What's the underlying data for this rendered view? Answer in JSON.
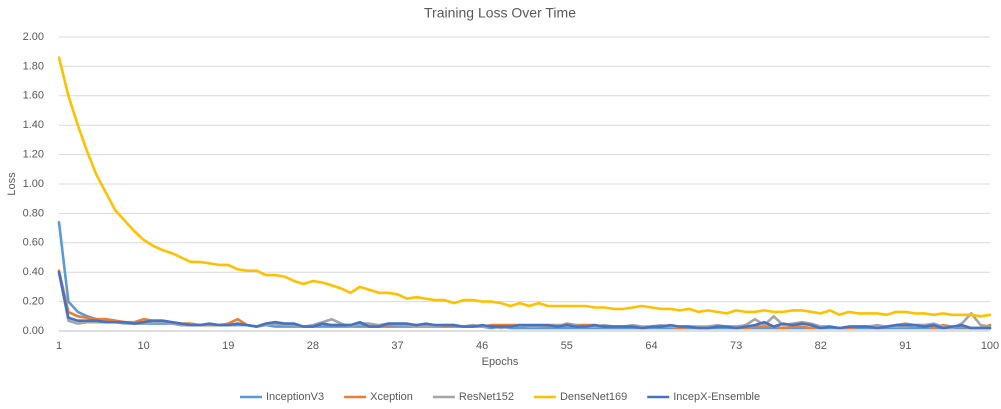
{
  "chart_data": {
    "type": "line",
    "title": "Training Loss Over Time",
    "x_label": "Epochs",
    "y_label": "Loss",
    "categories": [
      1,
      null,
      null,
      null,
      null,
      null,
      null,
      null,
      null,
      10,
      null,
      null,
      null,
      null,
      null,
      null,
      null,
      null,
      19,
      null,
      null,
      null,
      null,
      null,
      null,
      null,
      null,
      28,
      null,
      null,
      null,
      null,
      null,
      null,
      null,
      null,
      37,
      null,
      null,
      null,
      null,
      null,
      null,
      null,
      null,
      46,
      null,
      null,
      null,
      null,
      null,
      null,
      null,
      null,
      55,
      null,
      null,
      null,
      null,
      null,
      null,
      null,
      null,
      64,
      null,
      null,
      null,
      null,
      null,
      null,
      null,
      null,
      73,
      null,
      null,
      null,
      null,
      null,
      null,
      null,
      null,
      82,
      null,
      null,
      null,
      null,
      null,
      null,
      null,
      null,
      91,
      null,
      null,
      null,
      null,
      null,
      null,
      null,
      null,
      100
    ],
    "ylim": [
      0,
      2
    ],
    "yticks": [
      {
        "value": 0,
        "label": "0.00"
      },
      {
        "value": 0.2,
        "label": "0.20"
      },
      {
        "value": 0.4,
        "label": "0.40"
      },
      {
        "value": 0.6,
        "label": "0.60"
      },
      {
        "value": 0.8,
        "label": "0.80"
      },
      {
        "value": 1,
        "label": "1.00"
      },
      {
        "value": 1.2,
        "label": "1.20"
      },
      {
        "value": 1.4,
        "label": "1.40"
      },
      {
        "value": 1.6,
        "label": "1.60"
      },
      {
        "value": 1.8,
        "label": "1.80"
      },
      {
        "value": 2,
        "label": "2.00"
      }
    ],
    "grid": true,
    "legend": "bottom",
    "series": [
      {
        "name": "InceptionV3",
        "color": "#5b9bd5",
        "values": [
          0.74,
          0.2,
          0.13,
          0.1,
          0.08,
          0.07,
          0.06,
          0.06,
          0.05,
          0.05,
          0.05,
          0.05,
          0.05,
          0.04,
          0.04,
          0.04,
          0.04,
          0.04,
          0.04,
          0.04,
          0.04,
          0.03,
          0.04,
          0.03,
          0.03,
          0.03,
          0.03,
          0.03,
          0.03,
          0.03,
          0.03,
          0.03,
          0.03,
          0.03,
          0.03,
          0.03,
          0.03,
          0.03,
          0.03,
          0.03,
          0.03,
          0.03,
          0.03,
          0.03,
          0.03,
          0.03,
          0.02,
          0.03,
          0.02,
          0.02,
          0.02,
          0.02,
          0.02,
          0.02,
          0.02,
          0.02,
          0.02,
          0.02,
          0.02,
          0.02,
          0.02,
          0.02,
          0.02,
          0.02,
          0.02,
          0.02,
          0.02,
          0.02,
          0.02,
          0.02,
          0.02,
          0.02,
          0.02,
          0.02,
          0.02,
          0.02,
          0.02,
          0.02,
          0.02,
          0.02,
          0.02,
          0.02,
          0.02,
          0.02,
          0.02,
          0.02,
          0.02,
          0.02,
          0.02,
          0.02,
          0.02,
          0.02,
          0.02,
          0.02,
          0.02,
          0.02,
          0.02,
          0.02,
          0.02,
          0.02
        ]
      },
      {
        "name": "Xception",
        "color": "#ed7d31",
        "values": [
          0.41,
          0.13,
          0.1,
          0.09,
          0.08,
          0.08,
          0.07,
          0.06,
          0.06,
          0.08,
          0.07,
          0.07,
          0.06,
          0.05,
          0.05,
          0.04,
          0.04,
          0.04,
          0.05,
          0.08,
          0.04,
          0.03,
          0.05,
          0.06,
          0.05,
          0.04,
          0.03,
          0.03,
          0.05,
          0.04,
          0.04,
          0.04,
          0.05,
          0.03,
          0.03,
          0.04,
          0.04,
          0.04,
          0.04,
          0.04,
          0.04,
          0.03,
          0.04,
          0.03,
          0.04,
          0.03,
          0.04,
          0.04,
          0.04,
          0.04,
          0.03,
          0.04,
          0.03,
          0.03,
          0.05,
          0.04,
          0.04,
          0.04,
          0.03,
          0.03,
          0.03,
          0.03,
          0.02,
          0.03,
          0.03,
          0.03,
          0.02,
          0.03,
          0.02,
          0.03,
          0.03,
          0.03,
          0.03,
          0.02,
          0.03,
          0.03,
          0.03,
          0.02,
          0.03,
          0.03,
          0.02,
          0.03,
          0.03,
          0.02,
          0.02,
          0.03,
          0.03,
          0.02,
          0.03,
          0.04,
          0.05,
          0.04,
          0.04,
          0.02,
          0.04,
          0.03,
          0.03,
          0.02,
          0.02,
          0.04
        ]
      },
      {
        "name": "ResNet152",
        "color": "#a5a5a5",
        "values": [
          0.4,
          0.07,
          0.05,
          0.06,
          0.06,
          0.06,
          0.06,
          0.05,
          0.05,
          0.05,
          0.06,
          0.06,
          0.05,
          0.04,
          0.04,
          0.04,
          0.05,
          0.04,
          0.04,
          0.05,
          0.04,
          0.03,
          0.04,
          0.05,
          0.04,
          0.04,
          0.03,
          0.04,
          0.06,
          0.08,
          0.05,
          0.03,
          0.05,
          0.05,
          0.04,
          0.05,
          0.04,
          0.04,
          0.03,
          0.03,
          0.03,
          0.04,
          0.04,
          0.03,
          0.04,
          0.03,
          0.03,
          0.02,
          0.03,
          0.04,
          0.03,
          0.03,
          0.04,
          0.04,
          0.04,
          0.04,
          0.03,
          0.03,
          0.04,
          0.03,
          0.03,
          0.04,
          0.03,
          0.03,
          0.04,
          0.03,
          0.03,
          0.03,
          0.03,
          0.03,
          0.04,
          0.03,
          0.03,
          0.04,
          0.08,
          0.04,
          0.1,
          0.04,
          0.05,
          0.06,
          0.05,
          0.03,
          0.03,
          0.02,
          0.03,
          0.03,
          0.03,
          0.04,
          0.03,
          0.03,
          0.03,
          0.04,
          0.04,
          0.05,
          0.03,
          0.02,
          0.05,
          0.12,
          0.04,
          0.03
        ]
      },
      {
        "name": "DenseNet169",
        "color": "#ffc000",
        "values": [
          1.86,
          1.6,
          1.4,
          1.22,
          1.06,
          0.94,
          0.82,
          0.75,
          0.68,
          0.62,
          0.58,
          0.55,
          0.53,
          0.5,
          0.47,
          0.47,
          0.46,
          0.45,
          0.45,
          0.42,
          0.41,
          0.41,
          0.38,
          0.38,
          0.37,
          0.34,
          0.32,
          0.34,
          0.33,
          0.31,
          0.29,
          0.26,
          0.3,
          0.28,
          0.26,
          0.26,
          0.25,
          0.22,
          0.23,
          0.22,
          0.21,
          0.21,
          0.19,
          0.21,
          0.21,
          0.2,
          0.2,
          0.19,
          0.17,
          0.19,
          0.17,
          0.19,
          0.17,
          0.17,
          0.17,
          0.17,
          0.17,
          0.16,
          0.16,
          0.15,
          0.15,
          0.16,
          0.17,
          0.16,
          0.15,
          0.15,
          0.14,
          0.15,
          0.13,
          0.14,
          0.13,
          0.12,
          0.14,
          0.13,
          0.13,
          0.14,
          0.13,
          0.13,
          0.14,
          0.14,
          0.13,
          0.12,
          0.14,
          0.11,
          0.13,
          0.12,
          0.12,
          0.12,
          0.11,
          0.13,
          0.13,
          0.12,
          0.12,
          0.11,
          0.12,
          0.11,
          0.11,
          0.11,
          0.1,
          0.11
        ]
      },
      {
        "name": "IncepX-Ensemble",
        "color": "#4472c4",
        "values": [
          0.4,
          0.09,
          0.07,
          0.07,
          0.07,
          0.06,
          0.06,
          0.06,
          0.05,
          0.06,
          0.07,
          0.07,
          0.06,
          0.05,
          0.04,
          0.04,
          0.05,
          0.04,
          0.04,
          0.05,
          0.04,
          0.03,
          0.05,
          0.06,
          0.05,
          0.05,
          0.03,
          0.03,
          0.05,
          0.04,
          0.04,
          0.04,
          0.06,
          0.03,
          0.03,
          0.05,
          0.05,
          0.05,
          0.04,
          0.05,
          0.04,
          0.04,
          0.04,
          0.03,
          0.03,
          0.04,
          0.03,
          0.03,
          0.03,
          0.04,
          0.04,
          0.04,
          0.04,
          0.03,
          0.04,
          0.03,
          0.03,
          0.04,
          0.03,
          0.03,
          0.03,
          0.03,
          0.02,
          0.03,
          0.03,
          0.04,
          0.03,
          0.03,
          0.02,
          0.02,
          0.03,
          0.03,
          0.02,
          0.03,
          0.04,
          0.06,
          0.03,
          0.05,
          0.04,
          0.05,
          0.04,
          0.02,
          0.03,
          0.02,
          0.03,
          0.03,
          0.03,
          0.02,
          0.03,
          0.04,
          0.04,
          0.04,
          0.03,
          0.04,
          0.02,
          0.03,
          0.04,
          0.02,
          0.02,
          0.02
        ]
      }
    ]
  }
}
